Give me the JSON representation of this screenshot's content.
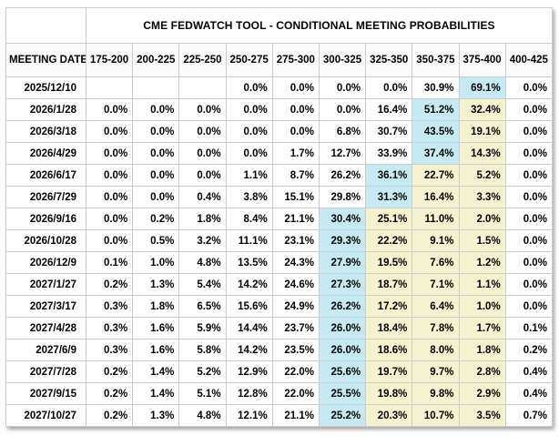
{
  "title": "CME FEDWATCH TOOL - CONDITIONAL MEETING PROBABILITIES",
  "columns": {
    "meeting_date_label": "MEETING DATE",
    "rate_bins": [
      "175-200",
      "200-225",
      "225-250",
      "250-275",
      "275-300",
      "300-325",
      "325-350",
      "350-375",
      "375-400",
      "400-425"
    ]
  },
  "colors": {
    "highlight_blue": "#c5eaf4",
    "highlight_yellow": "#f5f2cf",
    "border": "#cccccc",
    "header_bg": "#fafafa",
    "text": "#000000"
  },
  "rows": [
    {
      "date": "2025/12/10",
      "values": [
        "",
        "",
        "",
        "0.0%",
        "0.0%",
        "0.0%",
        "0.0%",
        "30.9%",
        "69.1%",
        "0.0%"
      ],
      "highlights": [
        "",
        "",
        "",
        "",
        "",
        "",
        "",
        "",
        "blue",
        ""
      ]
    },
    {
      "date": "2026/1/28",
      "values": [
        "0.0%",
        "0.0%",
        "0.0%",
        "0.0%",
        "0.0%",
        "0.0%",
        "16.4%",
        "51.2%",
        "32.4%",
        "0.0%"
      ],
      "highlights": [
        "",
        "",
        "",
        "",
        "",
        "",
        "",
        "blue",
        "yellow",
        ""
      ]
    },
    {
      "date": "2026/3/18",
      "values": [
        "0.0%",
        "0.0%",
        "0.0%",
        "0.0%",
        "0.0%",
        "6.8%",
        "30.7%",
        "43.5%",
        "19.1%",
        "0.0%"
      ],
      "highlights": [
        "",
        "",
        "",
        "",
        "",
        "",
        "",
        "blue",
        "yellow",
        ""
      ]
    },
    {
      "date": "2026/4/29",
      "values": [
        "0.0%",
        "0.0%",
        "0.0%",
        "0.0%",
        "1.7%",
        "12.7%",
        "33.9%",
        "37.4%",
        "14.3%",
        "0.0%"
      ],
      "highlights": [
        "",
        "",
        "",
        "",
        "",
        "",
        "",
        "blue",
        "yellow",
        ""
      ]
    },
    {
      "date": "2026/6/17",
      "values": [
        "0.0%",
        "0.0%",
        "0.0%",
        "1.1%",
        "8.7%",
        "26.2%",
        "36.1%",
        "22.7%",
        "5.2%",
        "0.0%"
      ],
      "highlights": [
        "",
        "",
        "",
        "",
        "",
        "",
        "blue",
        "yellow",
        "yellow",
        ""
      ]
    },
    {
      "date": "2026/7/29",
      "values": [
        "0.0%",
        "0.0%",
        "0.4%",
        "3.8%",
        "15.1%",
        "29.8%",
        "31.3%",
        "16.4%",
        "3.3%",
        "0.0%"
      ],
      "highlights": [
        "",
        "",
        "",
        "",
        "",
        "",
        "blue",
        "yellow",
        "yellow",
        ""
      ]
    },
    {
      "date": "2026/9/16",
      "values": [
        "0.0%",
        "0.2%",
        "1.8%",
        "8.4%",
        "21.1%",
        "30.4%",
        "25.1%",
        "11.0%",
        "2.0%",
        "0.0%"
      ],
      "highlights": [
        "",
        "",
        "",
        "",
        "",
        "blue",
        "yellow",
        "yellow",
        "yellow",
        ""
      ]
    },
    {
      "date": "2026/10/28",
      "values": [
        "0.0%",
        "0.5%",
        "3.2%",
        "11.1%",
        "23.1%",
        "29.3%",
        "22.2%",
        "9.1%",
        "1.5%",
        "0.0%"
      ],
      "highlights": [
        "",
        "",
        "",
        "",
        "",
        "blue",
        "yellow",
        "yellow",
        "yellow",
        ""
      ]
    },
    {
      "date": "2026/12/9",
      "values": [
        "0.1%",
        "1.0%",
        "4.8%",
        "13.5%",
        "24.3%",
        "27.9%",
        "19.5%",
        "7.6%",
        "1.2%",
        "0.0%"
      ],
      "highlights": [
        "",
        "",
        "",
        "",
        "",
        "blue",
        "yellow",
        "yellow",
        "yellow",
        ""
      ]
    },
    {
      "date": "2027/1/27",
      "values": [
        "0.2%",
        "1.3%",
        "5.4%",
        "14.2%",
        "24.6%",
        "27.3%",
        "18.7%",
        "7.1%",
        "1.1%",
        "0.0%"
      ],
      "highlights": [
        "",
        "",
        "",
        "",
        "",
        "blue",
        "yellow",
        "yellow",
        "yellow",
        ""
      ]
    },
    {
      "date": "2027/3/17",
      "values": [
        "0.3%",
        "1.8%",
        "6.5%",
        "15.6%",
        "24.9%",
        "26.2%",
        "17.2%",
        "6.4%",
        "1.0%",
        "0.0%"
      ],
      "highlights": [
        "",
        "",
        "",
        "",
        "",
        "blue",
        "yellow",
        "yellow",
        "yellow",
        ""
      ]
    },
    {
      "date": "2027/4/28",
      "values": [
        "0.3%",
        "1.6%",
        "5.9%",
        "14.4%",
        "23.7%",
        "26.0%",
        "18.4%",
        "7.8%",
        "1.7%",
        "0.1%"
      ],
      "highlights": [
        "",
        "",
        "",
        "",
        "",
        "blue",
        "yellow",
        "yellow",
        "yellow",
        ""
      ]
    },
    {
      "date": "2027/6/9",
      "values": [
        "0.3%",
        "1.6%",
        "5.8%",
        "14.2%",
        "23.5%",
        "26.0%",
        "18.6%",
        "8.0%",
        "1.8%",
        "0.2%"
      ],
      "highlights": [
        "",
        "",
        "",
        "",
        "",
        "blue",
        "yellow",
        "yellow",
        "yellow",
        ""
      ]
    },
    {
      "date": "2027/7/28",
      "values": [
        "0.2%",
        "1.4%",
        "5.2%",
        "12.9%",
        "22.0%",
        "25.6%",
        "19.7%",
        "9.7%",
        "2.8%",
        "0.4%"
      ],
      "highlights": [
        "",
        "",
        "",
        "",
        "",
        "blue",
        "yellow",
        "yellow",
        "yellow",
        ""
      ]
    },
    {
      "date": "2027/9/15",
      "values": [
        "0.2%",
        "1.4%",
        "5.1%",
        "12.8%",
        "22.0%",
        "25.5%",
        "19.8%",
        "9.8%",
        "2.9%",
        "0.4%"
      ],
      "highlights": [
        "",
        "",
        "",
        "",
        "",
        "blue",
        "yellow",
        "yellow",
        "yellow",
        ""
      ]
    },
    {
      "date": "2027/10/27",
      "values": [
        "0.2%",
        "1.3%",
        "4.8%",
        "12.1%",
        "21.1%",
        "25.2%",
        "20.3%",
        "10.7%",
        "3.5%",
        "0.7%"
      ],
      "highlights": [
        "",
        "",
        "",
        "",
        "",
        "blue",
        "yellow",
        "yellow",
        "yellow",
        ""
      ]
    }
  ]
}
